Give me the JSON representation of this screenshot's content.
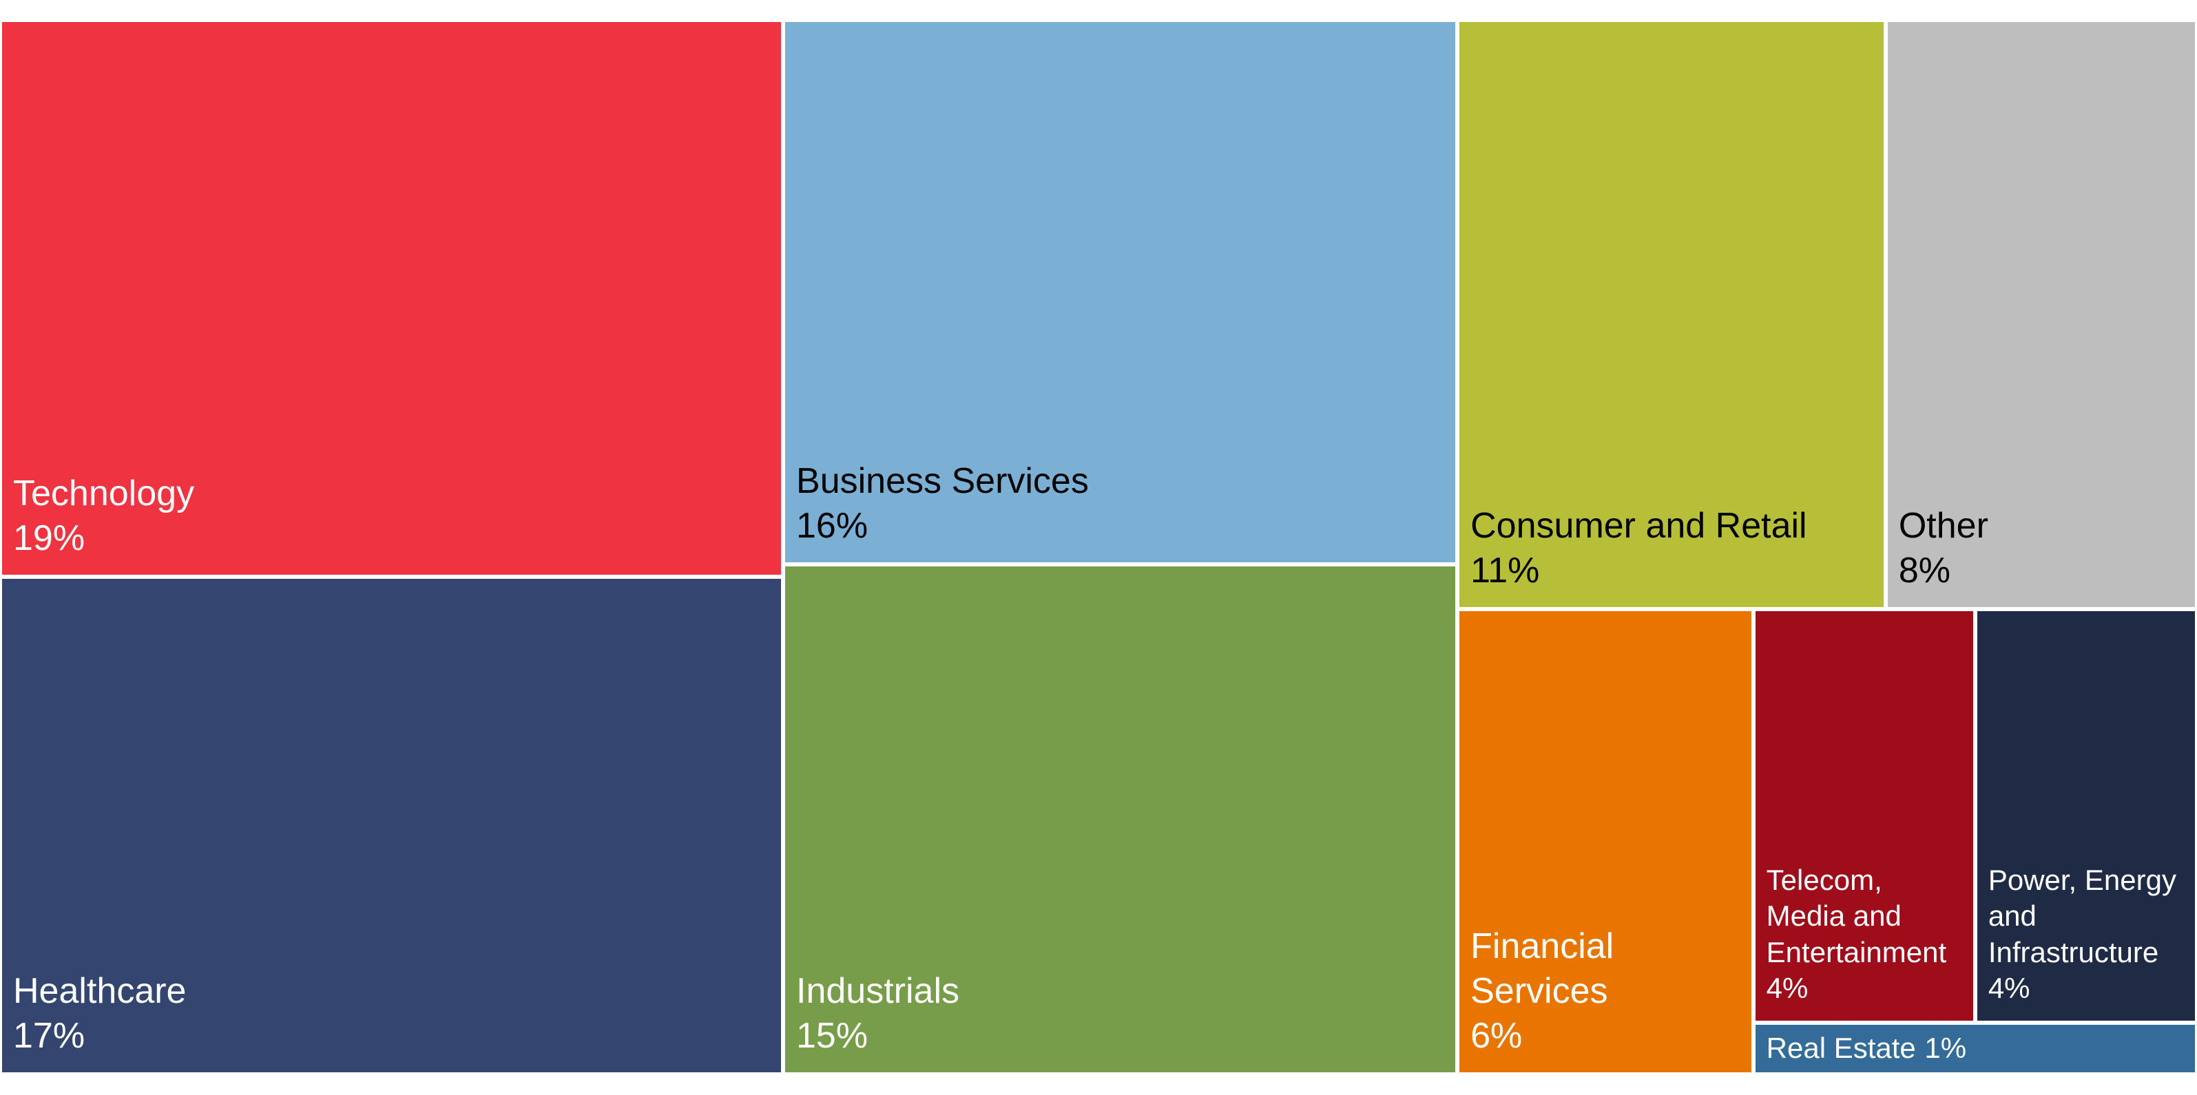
{
  "chart_data": {
    "type": "treemap",
    "categories": [
      "Technology",
      "Healthcare",
      "Business Services",
      "Industrials",
      "Consumer and Retail",
      "Other",
      "Financial Services",
      "Telecom, Media and Entertainment",
      "Power, Energy and Infrastructure",
      "Real Estate"
    ],
    "values": [
      19,
      17,
      16,
      15,
      11,
      8,
      6,
      4,
      4,
      1
    ],
    "value_labels": [
      "19%",
      "17%",
      "16%",
      "15%",
      "11%",
      "8%",
      "6%",
      "4%",
      "4%",
      "1%"
    ],
    "colors": [
      "#ef3340",
      "#34466f",
      "#7bafd4",
      "#789d4a",
      "#b7bf38",
      "#bebebe",
      "#e87500",
      "#a00d1a",
      "#1f2a44",
      "#336c99"
    ]
  }
}
